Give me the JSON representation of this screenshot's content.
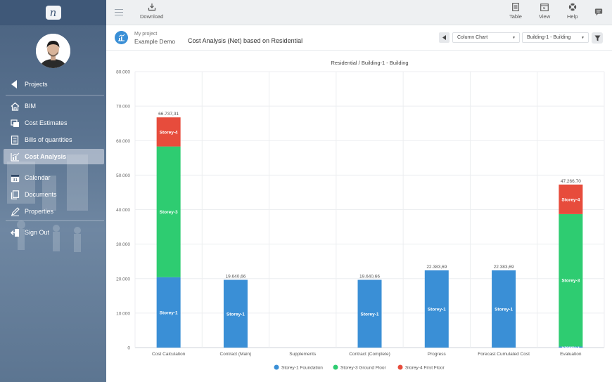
{
  "sidebar": {
    "items": [
      {
        "label": "Projects",
        "icon": "caret-left-icon"
      },
      {
        "label": "BIM",
        "icon": "home-icon"
      },
      {
        "label": "Cost Estimates",
        "icon": "cost-estimates-icon"
      },
      {
        "label": "Bills of quantities",
        "icon": "document-icon"
      },
      {
        "label": "Cost Analysis",
        "icon": "chart-icon",
        "active": true
      },
      {
        "label": "Calendar",
        "icon": "calendar-icon"
      },
      {
        "label": "Documents",
        "icon": "documents-icon"
      },
      {
        "label": "Properties",
        "icon": "pencil-icon"
      },
      {
        "label": "Sign Out",
        "icon": "sign-out-icon"
      }
    ],
    "calendar_day": "31"
  },
  "toolbar": {
    "download_label": "Download",
    "table_label": "Table",
    "view_label": "View",
    "help_label": "Help"
  },
  "header": {
    "project_caption": "My project",
    "project_name": "Example Demo",
    "title": "Cost Analysis (Net) based on Residential",
    "chart_type_select": "Column Chart",
    "building_select": "Building-1 - Building"
  },
  "colors": {
    "storey1": "#3a8fd6",
    "storey3": "#2ecc71",
    "storey4": "#e74c3c"
  },
  "chart_data": {
    "type": "bar",
    "title": "Residential / Building-1 - Building",
    "categories": [
      "Cost Calculation",
      "Contract (Main)",
      "Supplements",
      "Contract (Complete)",
      "Progress",
      "Forecast Cumulated Cost",
      "Evaluation"
    ],
    "series": [
      {
        "name": "Storey-1 Foundation",
        "short": "Storey-1",
        "values": [
          20400,
          19640.66,
          0,
          19640.66,
          22383.69,
          22383.69,
          300
        ]
      },
      {
        "name": "Storey-3 Ground Floor",
        "short": "Storey-3",
        "values": [
          37900,
          0,
          0,
          0,
          0,
          0,
          38400
        ]
      },
      {
        "name": "Storey-4 First Floor",
        "short": "Storey-4",
        "values": [
          8437.31,
          0,
          0,
          0,
          0,
          0,
          8566.7
        ]
      }
    ],
    "totals": [
      "66.737,31",
      "19.640,66",
      "",
      "19.640,66",
      "22.383,69",
      "22.383,69",
      "47.266,70"
    ],
    "y_ticks": [
      "0",
      "10.000",
      "20.000",
      "30.000",
      "40.000",
      "50.000",
      "60.000",
      "70.000",
      "80.000"
    ],
    "ylim": [
      0,
      80000
    ],
    "grid": true,
    "legend_position": "bottom"
  }
}
